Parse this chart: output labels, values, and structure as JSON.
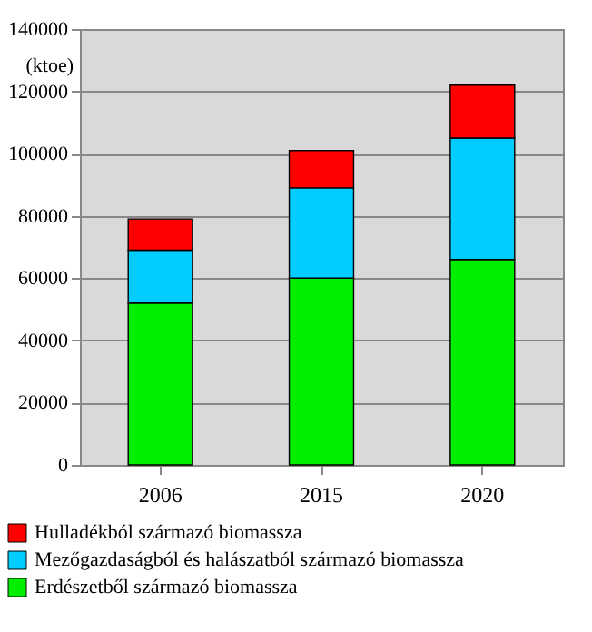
{
  "chart_data": {
    "type": "bar",
    "stacked": true,
    "ylabel": "(ktoe)",
    "categories": [
      "2006",
      "2015",
      "2020"
    ],
    "series": [
      {
        "name": "Erdészetből származó biomassza",
        "color": "#00ee00",
        "values": [
          52000,
          60000,
          66000
        ]
      },
      {
        "name": "Mezőgazdaságból és halászatból származó biomassza",
        "color": "#00ccff",
        "values": [
          17000,
          29000,
          39000
        ]
      },
      {
        "name": "Hulladékból származó biomassza",
        "color": "#ff0000",
        "values": [
          10000,
          12000,
          17000
        ]
      }
    ],
    "ylim": [
      0,
      140000
    ],
    "yticks": [
      0,
      20000,
      40000,
      60000,
      80000,
      100000,
      120000,
      140000
    ],
    "grid": "y",
    "legend": "bottom"
  }
}
